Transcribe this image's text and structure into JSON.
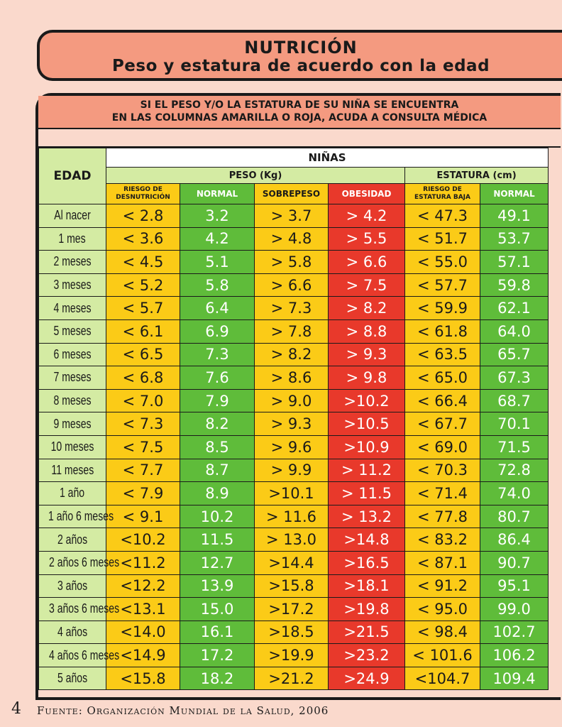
{
  "header": {
    "title": "NUTRICIÓN",
    "subtitle": "Peso y estatura de acuerdo con la edad"
  },
  "notice": {
    "line1": "SI EL PESO Y/O LA ESTATURA DE SU NIÑA SE ENCUENTRA",
    "line2": "EN LAS COLUMNAS AMARILLA O ROJA, ACUDA A CONSULTA MÉDICA"
  },
  "table": {
    "edad_label": "EDAD",
    "group_label": "NIÑAS",
    "peso_label": "PESO (Kg)",
    "estatura_label": "ESTATURA (cm)",
    "columns": [
      {
        "label": "RIESGO DE DESNUTRICIÓN",
        "color": "#fbcb17"
      },
      {
        "label": "NORMAL",
        "color": "#5fbc3a"
      },
      {
        "label": "SOBREPESO",
        "color": "#fbcb17"
      },
      {
        "label": "OBESIDAD",
        "color": "#e8392b"
      },
      {
        "label": "RIESGO DE ESTATURA BAJA",
        "color": "#fbcb17"
      },
      {
        "label": "NORMAL",
        "color": "#5fbc3a"
      }
    ],
    "rows": [
      {
        "edad": "Al nacer",
        "vals": [
          "< 2.8",
          "3.2",
          "> 3.7",
          "> 4.2",
          "< 47.3",
          "49.1"
        ]
      },
      {
        "edad": "1 mes",
        "vals": [
          "< 3.6",
          "4.2",
          "> 4.8",
          "> 5.5",
          "< 51.7",
          "53.7"
        ]
      },
      {
        "edad": "2 meses",
        "vals": [
          "< 4.5",
          "5.1",
          "> 5.8",
          "> 6.6",
          "< 55.0",
          "57.1"
        ]
      },
      {
        "edad": "3 meses",
        "vals": [
          "< 5.2",
          "5.8",
          "> 6.6",
          "> 7.5",
          "< 57.7",
          "59.8"
        ]
      },
      {
        "edad": "4 meses",
        "vals": [
          "< 5.7",
          "6.4",
          "> 7.3",
          "> 8.2",
          "< 59.9",
          "62.1"
        ]
      },
      {
        "edad": "5 meses",
        "vals": [
          "< 6.1",
          "6.9",
          "> 7.8",
          "> 8.8",
          "< 61.8",
          "64.0"
        ]
      },
      {
        "edad": "6 meses",
        "vals": [
          "< 6.5",
          "7.3",
          "> 8.2",
          "> 9.3",
          "< 63.5",
          "65.7"
        ]
      },
      {
        "edad": "7 meses",
        "vals": [
          "< 6.8",
          "7.6",
          "> 8.6",
          "> 9.8",
          "< 65.0",
          "67.3"
        ]
      },
      {
        "edad": "8 meses",
        "vals": [
          "< 7.0",
          "7.9",
          "> 9.0",
          ">10.2",
          "< 66.4",
          "68.7"
        ]
      },
      {
        "edad": "9 meses",
        "vals": [
          "< 7.3",
          "8.2",
          "> 9.3",
          ">10.5",
          "< 67.7",
          "70.1"
        ]
      },
      {
        "edad": "10 meses",
        "vals": [
          "< 7.5",
          "8.5",
          "> 9.6",
          ">10.9",
          "< 69.0",
          "71.5"
        ]
      },
      {
        "edad": "11 meses",
        "vals": [
          "< 7.7",
          "8.7",
          "> 9.9",
          "> 11.2",
          "< 70.3",
          "72.8"
        ]
      },
      {
        "edad": "1 año",
        "vals": [
          "< 7.9",
          "8.9",
          ">10.1",
          "> 11.5",
          "< 71.4",
          "74.0"
        ]
      },
      {
        "edad": "1 año 6 meses",
        "vals": [
          "< 9.1",
          "10.2",
          "> 11.6",
          "> 13.2",
          "< 77.8",
          "80.7"
        ]
      },
      {
        "edad": "2 años",
        "vals": [
          "<10.2",
          "11.5",
          "> 13.0",
          ">14.8",
          "< 83.2",
          "86.4"
        ]
      },
      {
        "edad": "2 años 6 meses",
        "vals": [
          "<11.2",
          "12.7",
          ">14.4",
          ">16.5",
          "< 87.1",
          "90.7"
        ]
      },
      {
        "edad": "3 años",
        "vals": [
          "<12.2",
          "13.9",
          ">15.8",
          ">18.1",
          "< 91.2",
          "95.1"
        ]
      },
      {
        "edad": "3 años 6 meses",
        "vals": [
          "<13.1",
          "15.0",
          ">17.2",
          ">19.8",
          "< 95.0",
          "99.0"
        ]
      },
      {
        "edad": "4 años",
        "vals": [
          "<14.0",
          "16.1",
          ">18.5",
          ">21.5",
          "< 98.4",
          "102.7"
        ]
      },
      {
        "edad": "4 años 6 meses",
        "vals": [
          "<14.9",
          "17.2",
          ">19.9",
          ">23.2",
          "< 101.6",
          "106.2"
        ]
      },
      {
        "edad": "5 años",
        "vals": [
          "<15.8",
          "18.2",
          ">21.2",
          ">24.9",
          "<104.7",
          "109.4"
        ]
      }
    ]
  },
  "footer": {
    "page_number": "4",
    "source": "Fuente: Organización Mundial de la Salud, 2006"
  }
}
